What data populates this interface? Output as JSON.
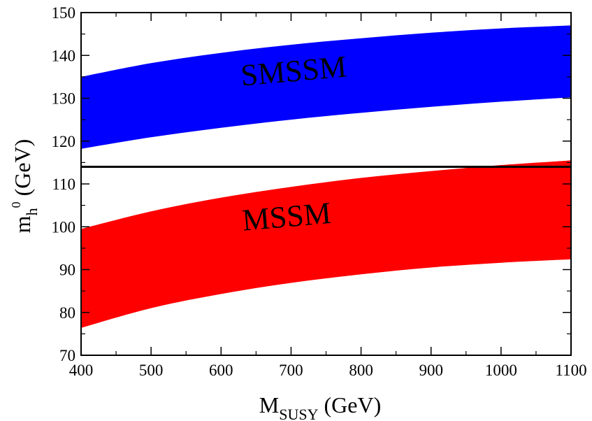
{
  "chart_data": {
    "type": "area",
    "title": "",
    "xlabel": {
      "main": "M",
      "sub": "SUSY",
      "unit": " (GeV)"
    },
    "ylabel": {
      "main": "m",
      "sub": "h",
      "sup": "0",
      "unit": " (GeV)"
    },
    "xlim": [
      400,
      1100
    ],
    "ylim": [
      70,
      150
    ],
    "xticks": [
      400,
      500,
      600,
      700,
      800,
      900,
      1000,
      1100
    ],
    "yticks": [
      70,
      80,
      90,
      100,
      110,
      120,
      130,
      140,
      150
    ],
    "grid": false,
    "x": [
      400,
      500,
      600,
      700,
      800,
      900,
      1000,
      1100
    ],
    "series": [
      {
        "name": "SMSSM",
        "color": "#0000ff",
        "lower": [
          118.2,
          120.9,
          123.1,
          125.0,
          126.6,
          128.0,
          129.2,
          130.2
        ],
        "upper": [
          135.0,
          138.2,
          140.6,
          142.5,
          144.0,
          145.3,
          146.3,
          147.0
        ]
      },
      {
        "name": "MSSM",
        "color": "#ff0000",
        "lower": [
          76.4,
          81.0,
          84.3,
          86.9,
          88.9,
          90.5,
          91.6,
          92.4
        ],
        "upper": [
          99.5,
          103.6,
          106.8,
          109.3,
          111.4,
          113.0,
          114.4,
          115.5
        ]
      }
    ],
    "reference_line": {
      "y": 114,
      "color": "#000000"
    },
    "annotations": [
      {
        "text": "SMSSM",
        "x": 705,
        "y": 134
      },
      {
        "text": "MSSM",
        "x": 695,
        "y": 100
      }
    ]
  }
}
